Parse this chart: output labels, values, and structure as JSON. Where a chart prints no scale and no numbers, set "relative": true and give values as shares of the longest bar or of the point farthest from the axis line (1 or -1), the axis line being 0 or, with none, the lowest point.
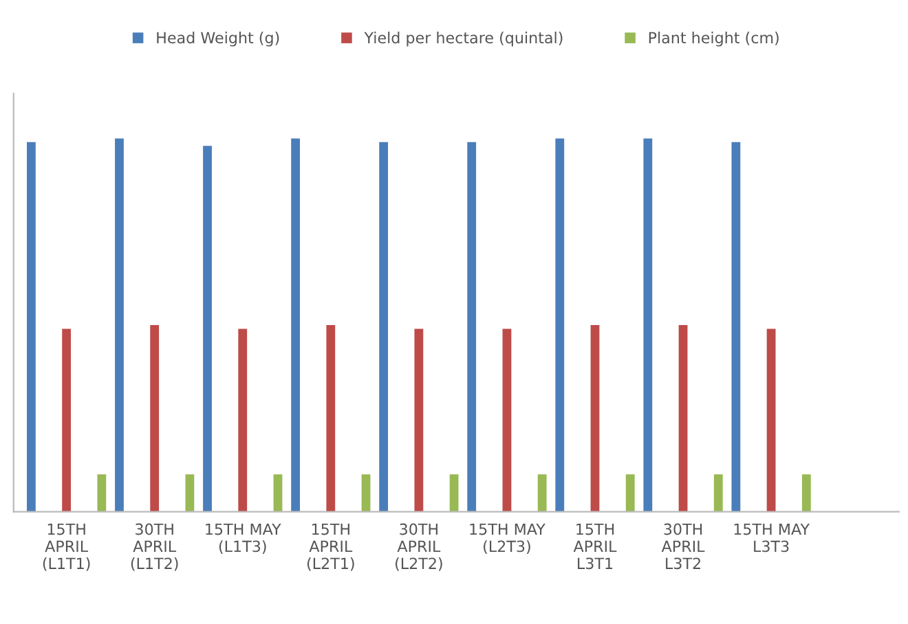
{
  "chart_data": {
    "type": "bar",
    "relative": true,
    "legend": "top",
    "grid": false,
    "categories": [
      "15TH\nAPRIL\n(L1T1)",
      "30TH\nAPRIL\n(L1T2)",
      "15TH MAY\n(L1T3)",
      "15TH\nAPRIL\n(L2T1)",
      "30TH\nAPRIL\n(L2T2)",
      "15TH MAY\n(L2T3)",
      "15TH\nAPRIL\nL3T1",
      "30TH\nAPRIL\nL3T2",
      "15TH MAY\nL3T3"
    ],
    "series": [
      {
        "name": "Head Weight (g)",
        "color": "#4a7ebb",
        "values": [
          0.99,
          1,
          0.98,
          1,
          0.99,
          0.99,
          1,
          1,
          0.99
        ]
      },
      {
        "name": "Yield per hectare (quintal)",
        "color": "#be4b48",
        "values": [
          0.49,
          0.5,
          0.49,
          0.5,
          0.49,
          0.49,
          0.5,
          0.5,
          0.49
        ]
      },
      {
        "name": "Plant height (cm)",
        "color": "#98b954",
        "values": [
          0.1,
          0.1,
          0.1,
          0.1,
          0.1,
          0.1,
          0.1,
          0.1,
          0.1
        ]
      }
    ]
  }
}
